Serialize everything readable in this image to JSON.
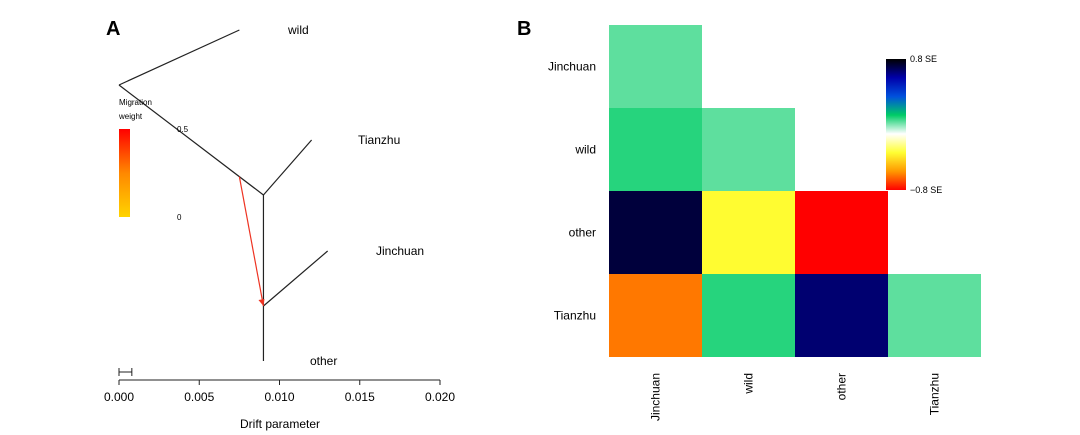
{
  "panels": {
    "a": {
      "letter": "A"
    },
    "b": {
      "letter": "B"
    }
  },
  "chart_data": [
    {
      "type": "tree",
      "panel": "A",
      "xlabel": "Drift parameter",
      "xlim": [
        0.0,
        0.02
      ],
      "xticks": [
        "0.000",
        "0.005",
        "0.010",
        "0.015",
        "0.020"
      ],
      "scale_bar": {
        "length": 0.0005
      },
      "leaves": [
        {
          "name": "wild",
          "drift": 0.0075
        },
        {
          "name": "Tianzhu",
          "drift": 0.012
        },
        {
          "name": "Jinchuan",
          "drift": 0.013
        },
        {
          "name": "other",
          "drift": 0.009
        }
      ],
      "migration_edges": [
        {
          "from_drift": 0.0075,
          "to_drift": 0.009,
          "weight": 0.5,
          "color": "#ee3322"
        }
      ],
      "legend": {
        "title_lines": [
          "Migration",
          "weight"
        ],
        "max_label": "0.5",
        "min_label": "0",
        "colors": [
          "#ffd400",
          "#ff8800",
          "#ff0000"
        ]
      }
    },
    {
      "type": "heatmap",
      "panel": "B",
      "rows": [
        "Jinchuan",
        "wild",
        "other",
        "Tianzhu"
      ],
      "cols": [
        "Jinchuan",
        "wild",
        "other",
        "Tianzhu"
      ],
      "cells": [
        [
          0.03,
          null,
          null,
          null
        ],
        [
          0.08,
          0.03,
          null,
          null
        ],
        [
          0.72,
          -0.35,
          -0.8,
          null
        ],
        [
          -0.62,
          0.08,
          0.65,
          0.03
        ]
      ],
      "colorbar": {
        "max_label": "0.8 SE",
        "min_label": "−0.8 SE",
        "stops": [
          "#000000",
          "#0000aa",
          "#0050dd",
          "#00cc66",
          "#ffffff",
          "#ffff33",
          "#ff9900",
          "#ff0000"
        ]
      }
    }
  ]
}
